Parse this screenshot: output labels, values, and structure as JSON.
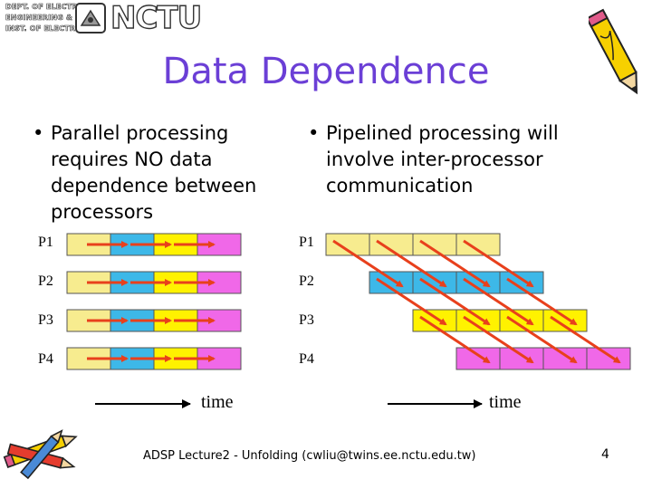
{
  "logo": {
    "lines": [
      "DEPT. OF ELECTRONICS",
      "ENGINEERING &",
      "INST. OF ELECTRONICS"
    ],
    "mark": "NCTU"
  },
  "title": "Data Dependence",
  "bullets": {
    "left": {
      "marker": "•",
      "lines": [
        "Parallel processing",
        "requires NO data",
        "dependence between",
        "processors"
      ]
    },
    "right": {
      "marker": "•",
      "lines": [
        "Pipelined processing will",
        "involve inter-processor",
        "communication"
      ]
    }
  },
  "diagrams": {
    "parallel": {
      "rows": [
        {
          "label": "P1",
          "colors": [
            "#f7ec8f",
            "#3db8e8",
            "#fff200",
            "#f068e8"
          ]
        },
        {
          "label": "P2",
          "colors": [
            "#f7ec8f",
            "#3db8e8",
            "#fff200",
            "#f068e8"
          ]
        },
        {
          "label": "P3",
          "colors": [
            "#f7ec8f",
            "#3db8e8",
            "#fff200",
            "#f068e8"
          ]
        },
        {
          "label": "P4",
          "colors": [
            "#f7ec8f",
            "#3db8e8",
            "#fff200",
            "#f068e8"
          ]
        }
      ],
      "time_label": "time"
    },
    "pipelined": {
      "rows": [
        {
          "label": "P1",
          "color": "#f7ec8f",
          "offset": 0
        },
        {
          "label": "P2",
          "color": "#3db8e8",
          "offset": 1
        },
        {
          "label": "P3",
          "color": "#fff200",
          "offset": 2
        },
        {
          "label": "P4",
          "color": "#f068e8",
          "offset": 3
        }
      ],
      "cells_per_row": 4,
      "time_label": "time"
    },
    "arrow_color": "#e8401c"
  },
  "footer": "ADSP Lecture2 - Unfolding   (cwliu@twins.ee.nctu.edu.tw)",
  "page_number": "4",
  "icons": [
    "pencil-icon",
    "pencils-cluster-icon"
  ]
}
